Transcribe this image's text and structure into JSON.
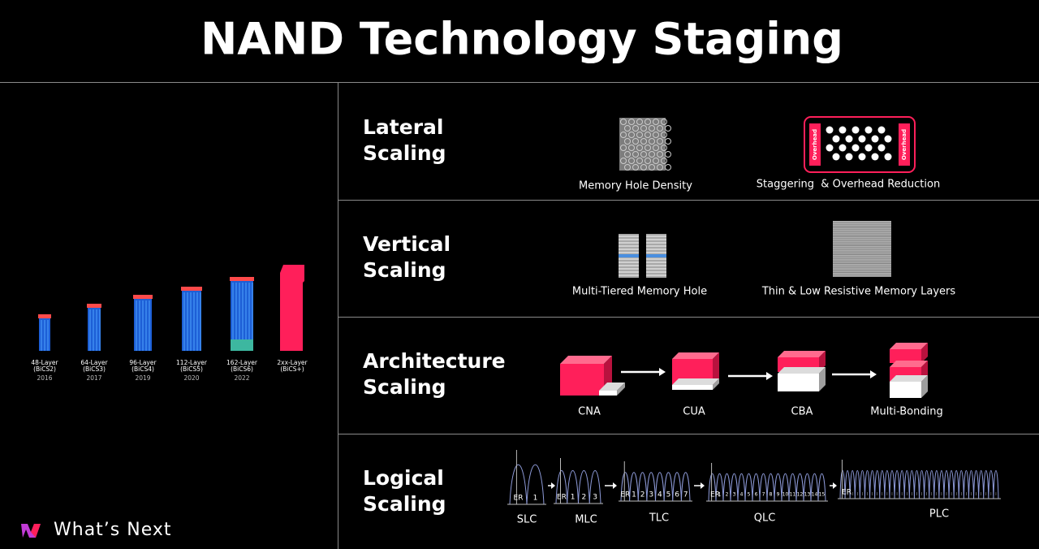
{
  "title": "NAND Technology Staging",
  "logo_text": "What’s Next",
  "generations": [
    {
      "layers": "48-Layer",
      "bics": "(BiCS2)",
      "year": "2016"
    },
    {
      "layers": "64-Layer",
      "bics": "(BiCS3)",
      "year": "2017"
    },
    {
      "layers": "96-Layer",
      "bics": "(BiCS4)",
      "year": "2019"
    },
    {
      "layers": "112-Layer",
      "bics": "(BiCS5)",
      "year": "2020"
    },
    {
      "layers": "162-Layer",
      "bics": "(BiCS6)",
      "year": "2022"
    },
    {
      "layers": "2xx-Layer",
      "bics": "(BiCS+)"
    }
  ],
  "lateral": {
    "heading": [
      "Lateral",
      "Scaling"
    ],
    "memory_hole_density": "Memory Hole Density",
    "staggering": "Staggering  & Overhead Reduction",
    "overhead": "Overhead"
  },
  "vertical": {
    "heading": [
      "Vertical",
      "Scaling"
    ],
    "multi_tiered": "Multi-Tiered Memory Hole",
    "thin_layers": "Thin & Low Resistive Memory Layers"
  },
  "architecture": {
    "heading": [
      "Architecture",
      "Scaling"
    ],
    "stages": [
      "CNA",
      "CUA",
      "CBA",
      "Multi-Bonding"
    ]
  },
  "logical": {
    "heading": [
      "Logical",
      "Scaling"
    ],
    "cells": [
      {
        "name": "SLC",
        "states": [
          "ER",
          "1"
        ]
      },
      {
        "name": "MLC",
        "states": [
          "ER",
          "1",
          "2",
          "3"
        ]
      },
      {
        "name": "TLC",
        "states": [
          "ER",
          "1",
          "2",
          "3",
          "4",
          "5",
          "6",
          "7"
        ]
      },
      {
        "name": "QLC",
        "states": [
          "ER",
          "1",
          "2",
          "3",
          "4",
          "5",
          "6",
          "7",
          "8",
          "9",
          "10",
          "11",
          "12",
          "13",
          "14",
          "15"
        ]
      },
      {
        "name": "PLC",
        "states": [
          "ER"
        ]
      }
    ]
  }
}
